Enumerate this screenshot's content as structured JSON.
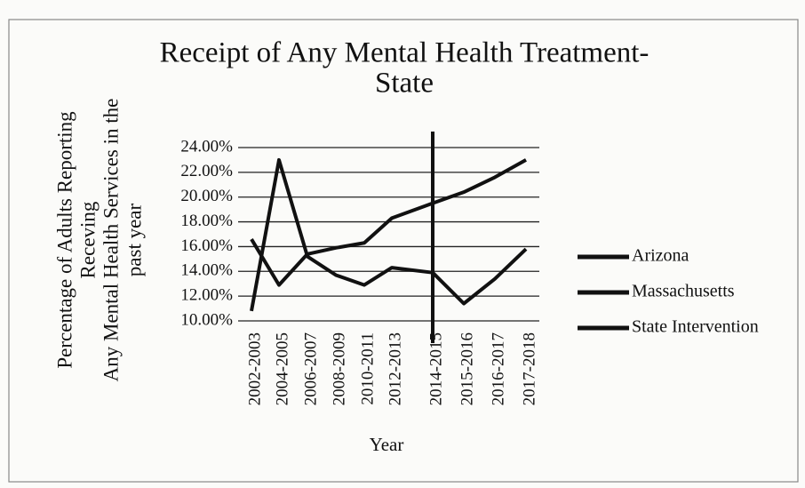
{
  "chart_data": {
    "type": "line",
    "title": [
      "Receipt of Any Mental Health Treatment-",
      "State"
    ],
    "y_label": [
      "Percentage of Adults Reporting",
      "Receving",
      "Any Mental  Health Services in the",
      "past year"
    ],
    "x_label": "Year",
    "categories": [
      "2002-2003",
      "2004-2005",
      "2006-2007",
      "2008-2009",
      "2010-2011",
      "2012-2013",
      "2014-2015",
      "2015-2016",
      "2016-2017",
      "2017-2018"
    ],
    "series": [
      {
        "name": "Arizona",
        "color": "#111111",
        "values": [
          10.8,
          23.0,
          15.2,
          13.7,
          12.9,
          14.3,
          13.9,
          11.4,
          13.4,
          15.8
        ]
      },
      {
        "name": "Massachusetts",
        "color": "#111111",
        "values": [
          16.6,
          12.9,
          15.4,
          15.9,
          16.3,
          18.3,
          19.5,
          20.4,
          21.6,
          23.0
        ]
      }
    ],
    "vlines": [
      {
        "name": "State Intervention",
        "color": "#111111",
        "x": "2014-2015"
      }
    ],
    "ylim": [
      10,
      24
    ],
    "yticks": [
      {
        "value": 10,
        "label": "10.00%"
      },
      {
        "value": 12,
        "label": "12.00%"
      },
      {
        "value": 14,
        "label": "14.00%"
      },
      {
        "value": 16,
        "label": "16.00%"
      },
      {
        "value": 18,
        "label": "18.00%"
      },
      {
        "value": 20,
        "label": "20.00%"
      },
      {
        "value": 22,
        "label": "22.00%"
      },
      {
        "value": 24,
        "label": "24.00%"
      }
    ],
    "grid": true,
    "legend": "right"
  }
}
